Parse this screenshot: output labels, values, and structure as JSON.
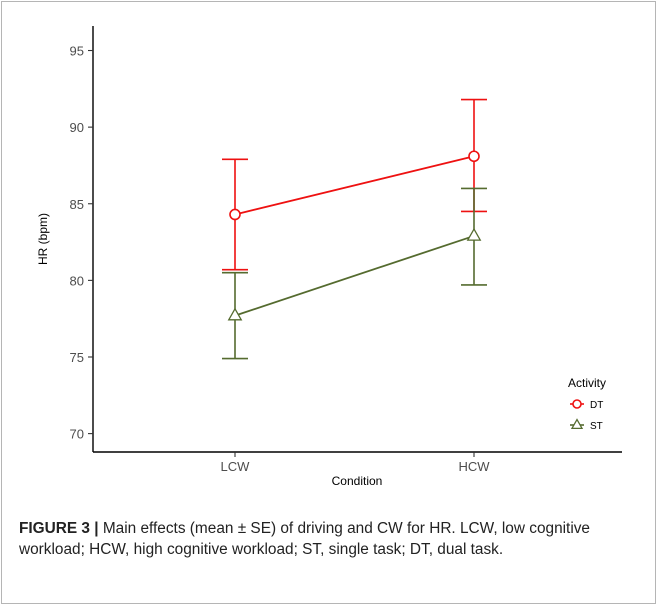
{
  "chart_data": {
    "type": "line",
    "title": "",
    "xlabel": "Condition",
    "ylabel": "HR (bpm)",
    "categories": [
      "LCW",
      "HCW"
    ],
    "ylim": [
      68.8,
      96.6
    ],
    "yticks": [
      70,
      75,
      80,
      85,
      90,
      95
    ],
    "grid": false,
    "legend": {
      "title": "Activity",
      "position": "right-bottom"
    },
    "series": [
      {
        "name": "DT",
        "marker": "circle",
        "color": "#ee1111",
        "values": [
          84.3,
          88.1
        ],
        "upper": [
          87.9,
          91.8
        ],
        "lower": [
          80.7,
          84.5
        ]
      },
      {
        "name": "ST",
        "marker": "triangle",
        "color": "#556b2f",
        "values": [
          77.7,
          82.9
        ],
        "upper": [
          80.5,
          86.0
        ],
        "lower": [
          74.9,
          79.7
        ]
      }
    ]
  },
  "caption": {
    "label": "FIGURE 3 |",
    "text": " Main effects (mean ± SE) of driving and CW for HR. LCW, low cognitive workload; HCW, high cognitive workload; ST, single task; DT, dual task."
  }
}
